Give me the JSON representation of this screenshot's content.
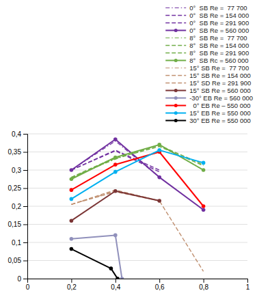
{
  "chart_data": {
    "type": "line",
    "series": [
      {
        "name": "0°  SB Re =  77 700",
        "color": "#7030a0",
        "line_style": "dashdot",
        "x": [
          0.2,
          0.4,
          0.6
        ],
        "values": [
          0.3,
          0.38,
          0.28
        ]
      },
      {
        "name": "0°  SB Re = 154 000",
        "color": "#7030a0",
        "line_style": "dashed",
        "x": [
          0.2,
          0.4,
          0.6
        ],
        "values": [
          0.3,
          0.355,
          0.3
        ]
      },
      {
        "name": "0°  SB Re = 291 900",
        "color": "#7030a0",
        "line_style": "dashed",
        "x": [
          0.2,
          0.4,
          0.6
        ],
        "values": [
          0.3,
          0.353,
          0.295
        ]
      },
      {
        "name": "0°  SB Re = 560 000",
        "color": "#7030a0",
        "line_style": "solid",
        "marker": "circle",
        "x": [
          0.2,
          0.4,
          0.6,
          0.8
        ],
        "values": [
          0.3,
          0.385,
          0.28,
          0.19
        ]
      },
      {
        "name": "8°  SB Re =  77 700",
        "color": "#70ad47",
        "line_style": "dashdot",
        "x": [
          0.2,
          0.4,
          0.6,
          0.8
        ],
        "values": [
          0.28,
          0.33,
          0.37,
          0.3
        ]
      },
      {
        "name": "8°  SB Re = 154 000",
        "color": "#70ad47",
        "line_style": "dashed",
        "x": [
          0.2,
          0.4,
          0.6,
          0.8
        ],
        "values": [
          0.28,
          0.335,
          0.368,
          0.315
        ]
      },
      {
        "name": "8°  SB Re = 291 900",
        "color": "#70ad47",
        "line_style": "dashed",
        "x": [
          0.2,
          0.4,
          0.6,
          0.8
        ],
        "values": [
          0.278,
          0.332,
          0.365,
          0.312
        ]
      },
      {
        "name": "8°  SB Rc = 560 000",
        "color": "#70ad47",
        "line_style": "solid",
        "marker": "circle",
        "x": [
          0.2,
          0.4,
          0.6,
          0.8
        ],
        "values": [
          0.275,
          0.335,
          0.37,
          0.3
        ]
      },
      {
        "name": "15° SB Re =  77 700",
        "color": "#c09070",
        "line_style": "dashdot",
        "x": [
          0.2,
          0.4,
          0.6
        ],
        "values": [
          0.205,
          0.242,
          0.215
        ]
      },
      {
        "name": "15° SB Re = 154 000",
        "color": "#c09070",
        "line_style": "dashed",
        "x": [
          0.2,
          0.4,
          0.6
        ],
        "values": [
          0.205,
          0.24,
          0.215
        ]
      },
      {
        "name": "15° SD Re = 291 900",
        "color": "#c09070",
        "line_style": "dashed",
        "x": [
          0.2,
          0.4,
          0.6,
          0.8
        ],
        "values": [
          0.205,
          0.245,
          0.215,
          0.02
        ]
      },
      {
        "name": "15° SB Re = 560 000",
        "color": "#7b3535",
        "line_style": "solid",
        "marker": "circle",
        "x": [
          0.2,
          0.4,
          0.6
        ],
        "values": [
          0.16,
          0.242,
          0.215
        ]
      },
      {
        "name": "-30° EB Re = 560 000",
        "color": "#9090bb",
        "line_style": "solid",
        "marker": "circle",
        "x": [
          0.2,
          0.4,
          0.43
        ],
        "values": [
          0.11,
          0.12,
          0.0
        ]
      },
      {
        "name": "  0° EB Re – 550 000",
        "color": "#ff0000",
        "line_style": "solid",
        "marker": "circle",
        "x": [
          0.2,
          0.4,
          0.6,
          0.8
        ],
        "values": [
          0.245,
          0.315,
          0.35,
          0.2
        ]
      },
      {
        "name": "15° EB Re = 550 000",
        "color": "#00b0f0",
        "line_style": "solid",
        "marker": "circle",
        "x": [
          0.2,
          0.4,
          0.6,
          0.8
        ],
        "values": [
          0.22,
          0.295,
          0.355,
          0.32
        ]
      },
      {
        "name": "30° EB Re = 550 000",
        "color": "#000000",
        "line_style": "solid",
        "marker": "circle",
        "x": [
          0.2,
          0.38,
          0.41
        ],
        "values": [
          0.082,
          0.028,
          0.0
        ]
      }
    ],
    "xlim": [
      0,
      1.0
    ],
    "ylim": [
      0,
      0.4
    ],
    "xticks": [
      0,
      {
        "value": 0.2,
        "label": "0,2"
      },
      {
        "value": 0.4,
        "label": "0,4"
      },
      {
        "value": 0.6,
        "label": "0,6"
      },
      {
        "value": 0.8,
        "label": "0,8"
      },
      1
    ],
    "yticks": [
      0,
      {
        "value": 0.05,
        "label": "0,05"
      },
      {
        "value": 0.1,
        "label": "0,1"
      },
      {
        "value": 0.15,
        "label": "0,15"
      },
      {
        "value": 0.2,
        "label": "0,2"
      },
      {
        "value": 0.25,
        "label": "0,25"
      },
      {
        "value": 0.3,
        "label": "0,3"
      },
      {
        "value": 0.35,
        "label": "0,35"
      },
      {
        "value": 0.4,
        "label": "0,4"
      }
    ],
    "grid": true,
    "legend": "upper right"
  }
}
